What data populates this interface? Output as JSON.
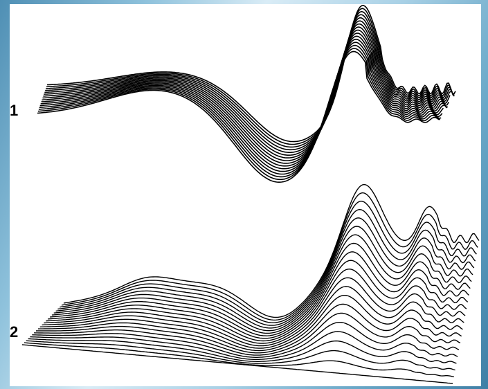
{
  "figure": {
    "panels": [
      {
        "id": "panel-1",
        "label": "1",
        "curve_count": 16
      },
      {
        "id": "panel-2",
        "label": "2",
        "curve_count": 22
      }
    ],
    "colors": {
      "line": "#000000",
      "background": "#ffffff"
    }
  }
}
